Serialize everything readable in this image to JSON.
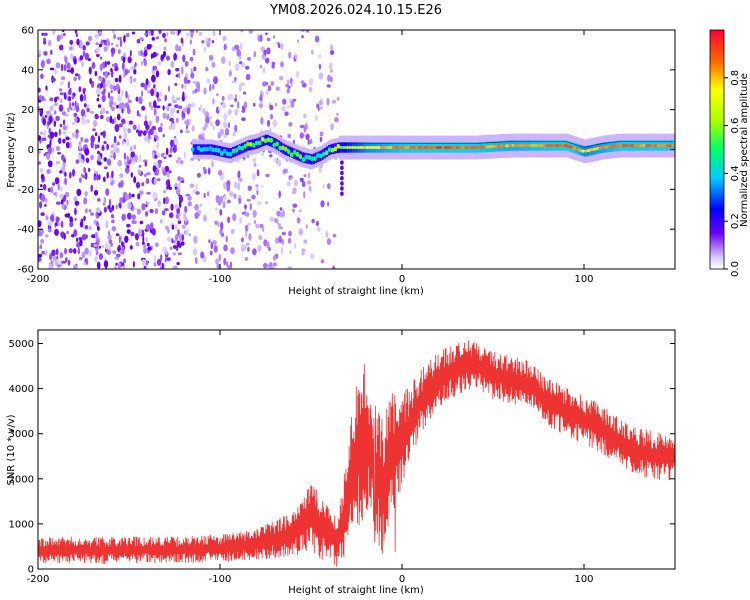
{
  "chart_data": [
    {
      "type": "heatmap",
      "title": "YM08.2026.024.10.15.E26",
      "xlabel": "Height of straight line (km)",
      "ylabel": "Frequency (Hz)",
      "xlim": [
        -200,
        150
      ],
      "ylim": [
        -60,
        60
      ],
      "x_ticks": [
        "-200",
        "-100",
        "0",
        "100"
      ],
      "y_ticks": [
        "-60",
        "-40",
        "-20",
        "0",
        "20",
        "40",
        "60"
      ],
      "colorbar": {
        "label": "Normalized spectral amplitude",
        "range": [
          0.0,
          1.0
        ],
        "ticks": [
          "0.0",
          "0.2",
          "0.4",
          "0.6",
          "0.8"
        ]
      },
      "ridge": {
        "description": "frequency of peak spectral amplitude vs height",
        "x": [
          -115,
          -105,
          -95,
          -90,
          -85,
          -80,
          -75,
          -70,
          -65,
          -60,
          -55,
          -50,
          -45,
          -40,
          -35,
          -30,
          -20,
          -10,
          0,
          20,
          40,
          60,
          80,
          90,
          100,
          110,
          120,
          150
        ],
        "y": [
          0,
          0,
          -2,
          0,
          2,
          3,
          5,
          3,
          0,
          -2,
          -4,
          -5,
          -3,
          0,
          1,
          1,
          1,
          1,
          1,
          1,
          1,
          2,
          2,
          2,
          -1,
          1,
          2,
          2
        ],
        "amplitude": [
          0.25,
          0.3,
          0.35,
          0.4,
          0.5,
          0.45,
          0.55,
          0.5,
          0.45,
          0.5,
          0.45,
          0.35,
          0.4,
          0.45,
          0.5,
          0.6,
          0.75,
          0.8,
          0.85,
          0.9,
          0.85,
          0.8,
          0.85,
          0.9,
          0.75,
          0.8,
          0.85,
          0.85
        ]
      },
      "noise_region": {
        "x": [
          -200,
          -35
        ],
        "y": [
          -60,
          60
        ]
      }
    },
    {
      "type": "line",
      "xlabel": "Height of straight line (km)",
      "ylabel": "SNR (10 * v/v)",
      "xlim": [
        -200,
        150
      ],
      "ylim": [
        0,
        5300
      ],
      "x_ticks": [
        "-200",
        "-100",
        "0",
        "100"
      ],
      "y_ticks": [
        "0",
        "1000",
        "2000",
        "3000",
        "4000",
        "5000"
      ],
      "color": "#ee3333",
      "series": [
        {
          "name": "SNR",
          "x": [
            -200,
            -180,
            -160,
            -140,
            -120,
            -100,
            -90,
            -80,
            -70,
            -60,
            -55,
            -50,
            -45,
            -40,
            -35,
            -30,
            -25,
            -20,
            -15,
            -10,
            -5,
            0,
            5,
            10,
            20,
            30,
            40,
            50,
            60,
            70,
            80,
            90,
            100,
            110,
            120,
            130,
            140,
            150
          ],
          "y": [
            400,
            420,
            410,
            430,
            420,
            470,
            500,
            550,
            650,
            800,
            1000,
            1200,
            900,
            800,
            600,
            1500,
            2500,
            3000,
            2200,
            1800,
            2600,
            2800,
            3300,
            3700,
            4200,
            4450,
            4550,
            4300,
            4200,
            4100,
            3700,
            3500,
            3300,
            3100,
            2800,
            2600,
            2500,
            2500
          ],
          "amplitude": [
            250,
            250,
            250,
            250,
            250,
            260,
            280,
            300,
            350,
            450,
            550,
            650,
            600,
            500,
            500,
            1000,
            1400,
            1500,
            1300,
            1300,
            1200,
            900,
            700,
            600,
            550,
            500,
            450,
            450,
            450,
            450,
            450,
            450,
            450,
            450,
            450,
            450,
            450,
            450
          ]
        }
      ]
    }
  ]
}
